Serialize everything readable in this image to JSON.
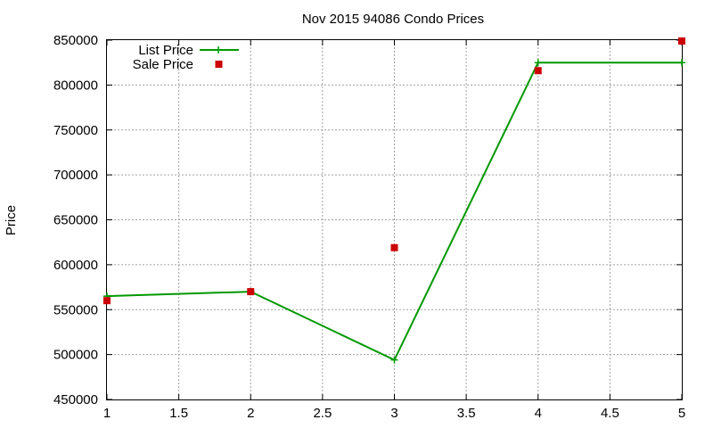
{
  "chart_data": {
    "type": "line",
    "title": "Nov 2015 94086 Condo Prices",
    "xlabel": "",
    "ylabel": "Price",
    "xlim": [
      1,
      5
    ],
    "ylim": [
      450000,
      850000
    ],
    "grid": true,
    "legend_position": "top-left",
    "x_ticks": [
      "1",
      "1.5",
      "2",
      "2.5",
      "3",
      "3.5",
      "4",
      "4.5",
      "5"
    ],
    "y_ticks": [
      "450000",
      "500000",
      "550000",
      "600000",
      "650000",
      "700000",
      "750000",
      "800000",
      "850000"
    ],
    "series": [
      {
        "name": "List Price",
        "style": "line-with-plus",
        "color": "#009900",
        "x": [
          1,
          2,
          3,
          4,
          5
        ],
        "values": [
          565000,
          570000,
          494000,
          825000,
          825000
        ]
      },
      {
        "name": "Sale Price",
        "style": "square-points",
        "color": "#cc0000",
        "x": [
          1,
          2,
          3,
          4,
          5
        ],
        "values": [
          560000,
          570000,
          619000,
          816000,
          849000
        ]
      }
    ]
  }
}
